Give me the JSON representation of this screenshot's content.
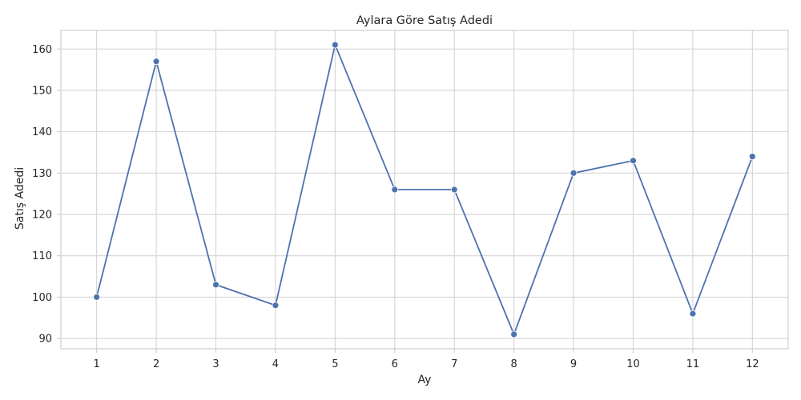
{
  "chart_data": {
    "type": "line",
    "title": "Aylara Göre Satış Adedi",
    "xlabel": "Ay",
    "ylabel": "Satış Adedi",
    "x": [
      1,
      2,
      3,
      4,
      5,
      6,
      7,
      8,
      9,
      10,
      11,
      12
    ],
    "series": [
      {
        "values": [
          100,
          157,
          103,
          98,
          161,
          126,
          126,
          91,
          130,
          133,
          96,
          134
        ]
      }
    ],
    "xticks": [
      1,
      2,
      3,
      4,
      5,
      6,
      7,
      8,
      9,
      10,
      11,
      12
    ],
    "yticks": [
      90,
      100,
      110,
      120,
      130,
      140,
      150,
      160
    ],
    "xlim": [
      0.4,
      12.6
    ],
    "ylim": [
      87.5,
      164.5
    ],
    "grid": true,
    "markers": true,
    "line_color": "#4c72b0"
  }
}
